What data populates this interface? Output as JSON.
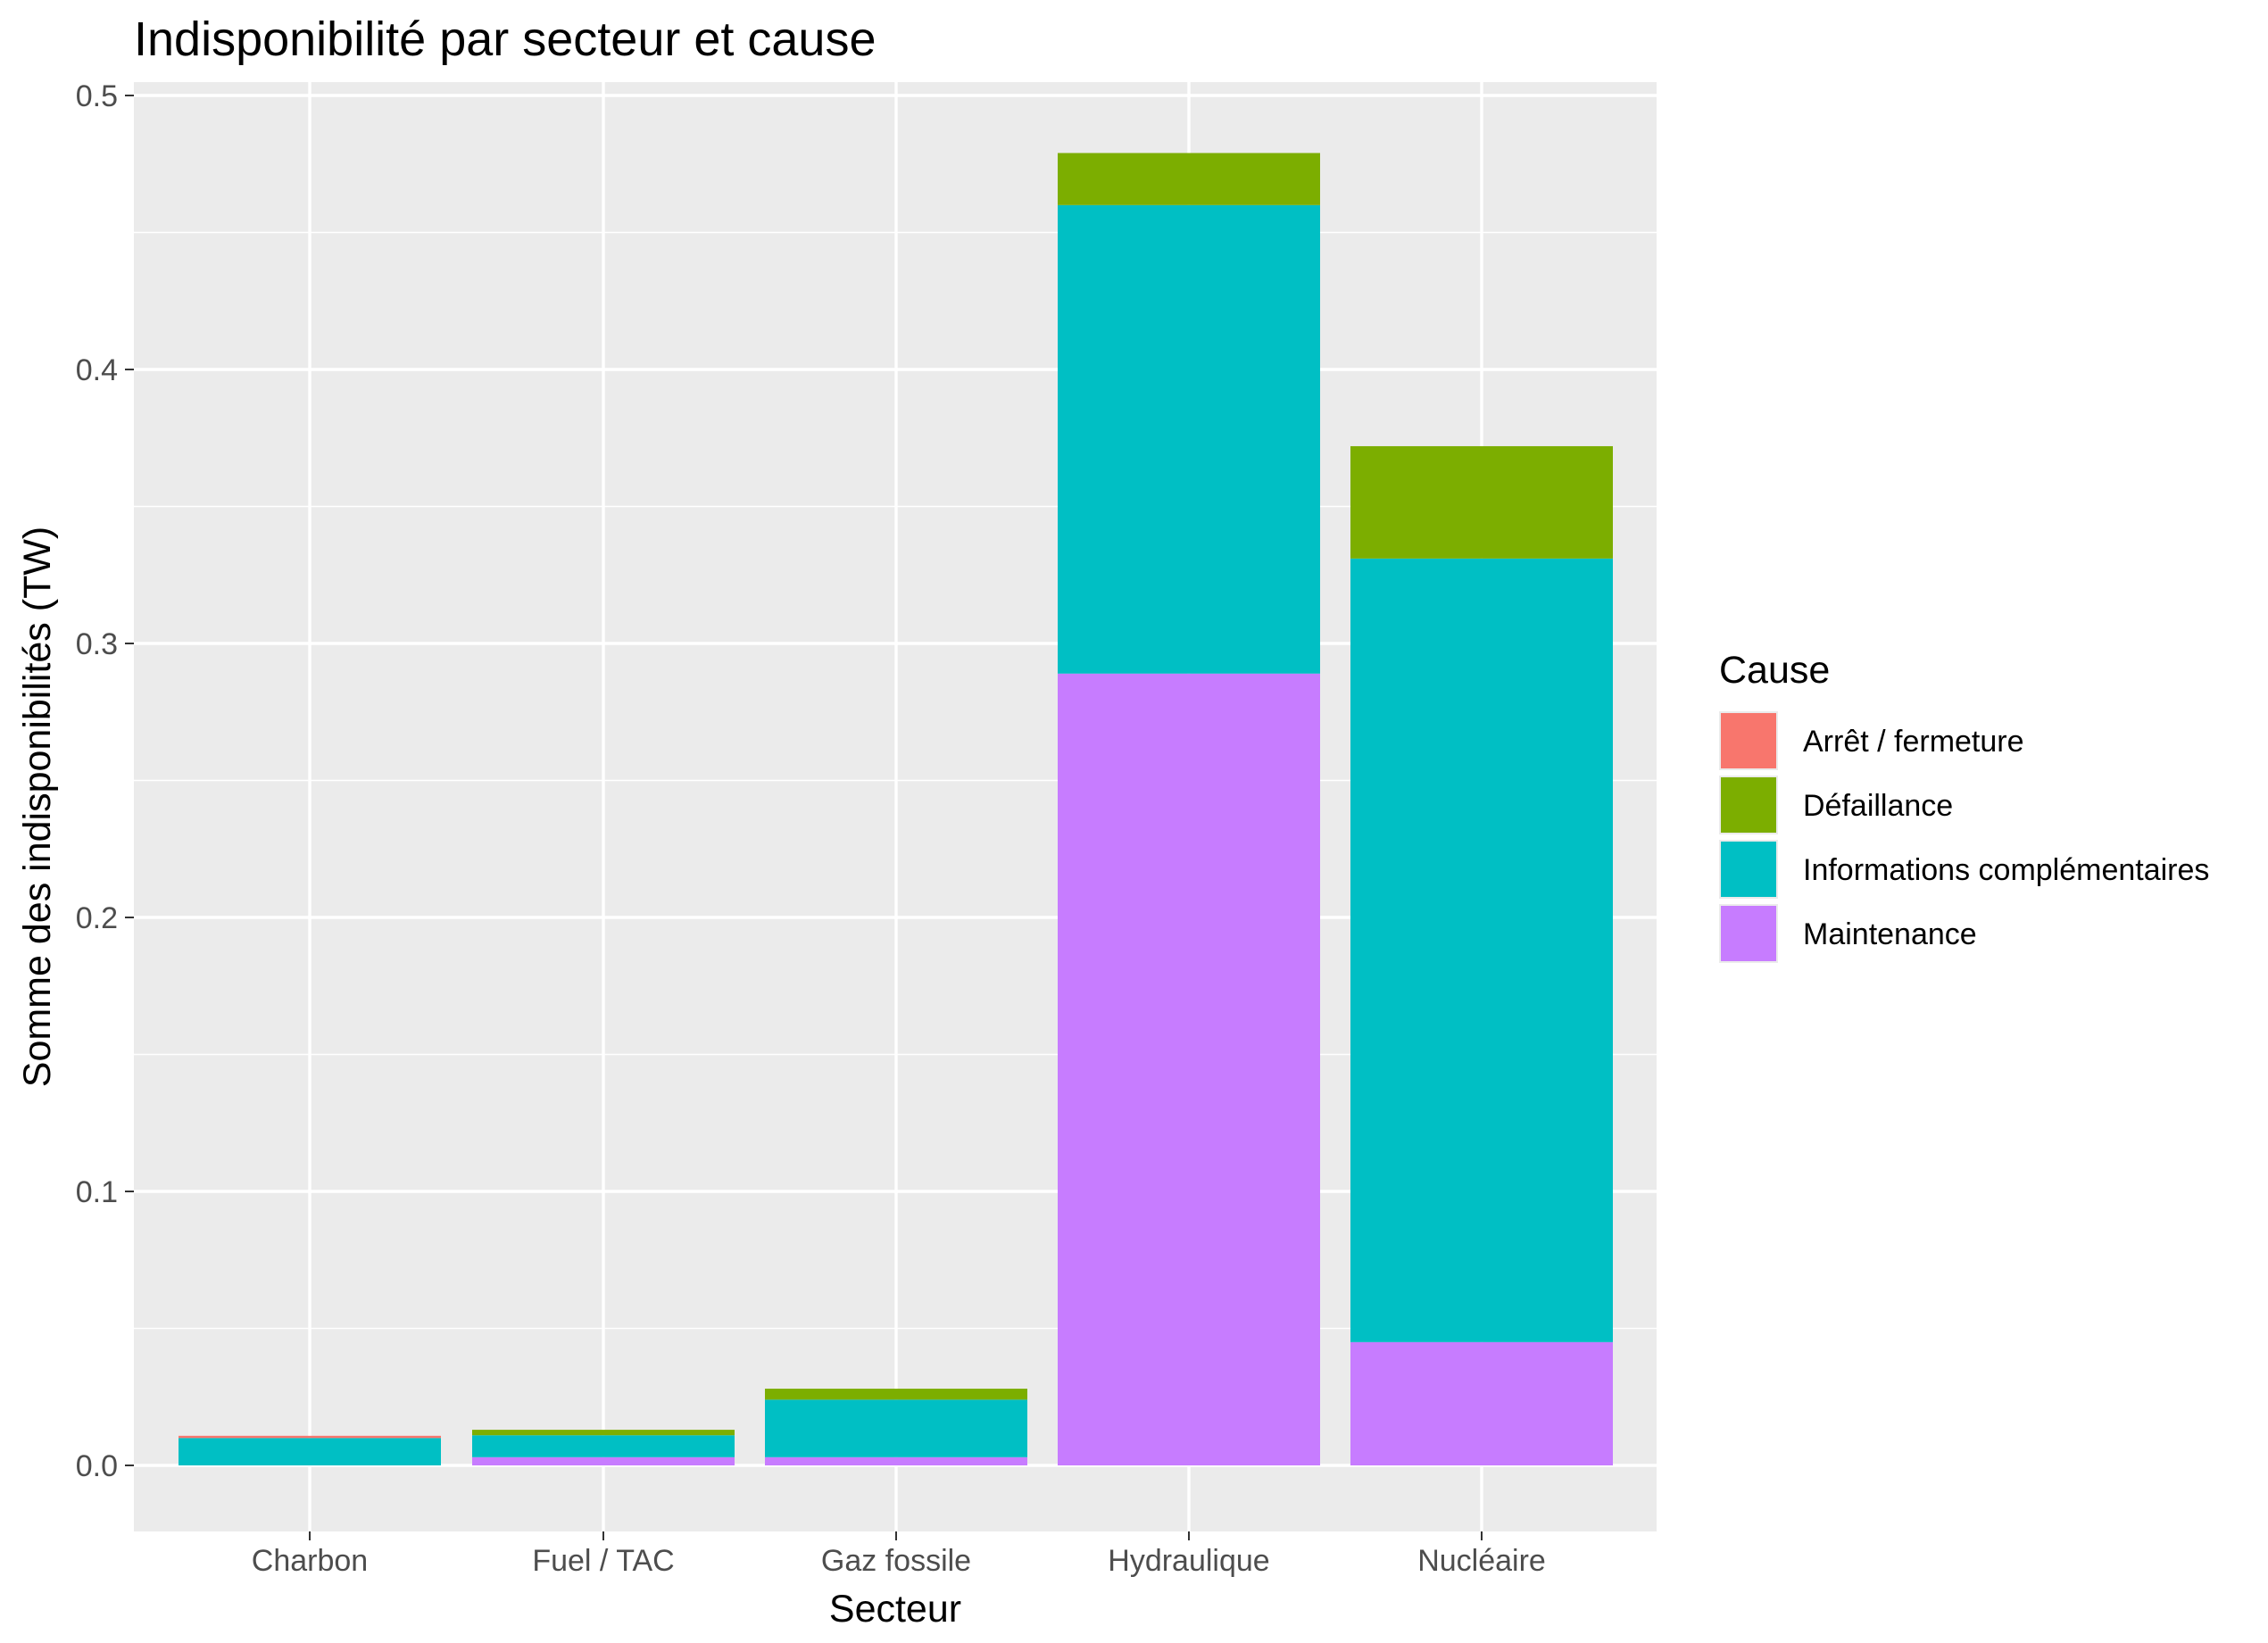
{
  "chart_data": {
    "type": "bar",
    "stacked": true,
    "title": "Indisponibilité par secteur et cause",
    "xlabel": "Secteur",
    "ylabel": "Somme des indisponibilités (TW)",
    "ylim": [
      -0.025,
      0.5
    ],
    "yticks": [
      0.0,
      0.1,
      0.2,
      0.3,
      0.4,
      0.5
    ],
    "ytick_labels": [
      "0.0",
      "0.1",
      "0.2",
      "0.3",
      "0.4",
      "0.5"
    ],
    "grid": true,
    "legend_position": "right",
    "legend_title": "Cause",
    "categories": [
      "Charbon",
      "Fuel / TAC",
      "Gaz fossile",
      "Hydraulique",
      "Nucléaire"
    ],
    "series": [
      {
        "name": "Arrêt / fermeture",
        "color": "#F8766D",
        "values": [
          0.0008,
          0.0,
          0.0,
          0.0,
          0.0
        ]
      },
      {
        "name": "Défaillance",
        "color": "#7CAE00",
        "values": [
          0.0,
          0.002,
          0.004,
          0.019,
          0.041
        ]
      },
      {
        "name": "Informations complémentaires",
        "color": "#00BFC4",
        "values": [
          0.01,
          0.008,
          0.021,
          0.171,
          0.286
        ]
      },
      {
        "name": "Maintenance",
        "color": "#C77CFF",
        "values": [
          0.0,
          0.003,
          0.003,
          0.289,
          0.045
        ]
      }
    ]
  }
}
